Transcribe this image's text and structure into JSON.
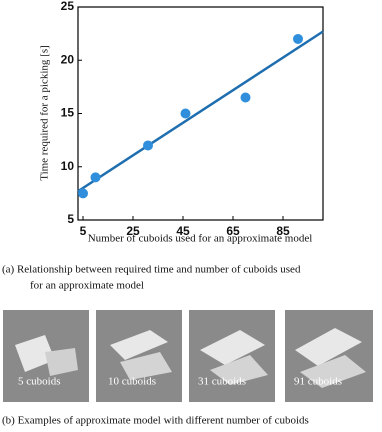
{
  "chart_data": {
    "type": "scatter",
    "x_label": "Number of cuboids used for an approximate model",
    "y_label": "Time required for a picking  [s]",
    "x": [
      5,
      10,
      31,
      46,
      70,
      91
    ],
    "values": [
      7.5,
      9,
      12,
      15,
      16.5,
      22
    ],
    "color": "#2f8fdd",
    "trendline": {
      "x": [
        3,
        101
      ],
      "values": [
        7.7,
        22.7
      ],
      "color": "#1f6fb0"
    },
    "xlim": [
      3,
      101
    ],
    "xticks": [
      5,
      25,
      45,
      65,
      85
    ],
    "ylim": [
      5,
      25
    ],
    "yticks": [
      5,
      10,
      15,
      20,
      25
    ]
  },
  "captions": {
    "a": [
      "(a) Relationship between required time and  number of cuboids used",
      "for an approximate model"
    ],
    "b": "(b) Examples of  approximate model with different number of cuboids"
  },
  "images": [
    {
      "label": "5 cuboids"
    },
    {
      "label": "10 cuboids"
    },
    {
      "label": "31 cuboids"
    },
    {
      "label": "91 cuboids"
    }
  ]
}
